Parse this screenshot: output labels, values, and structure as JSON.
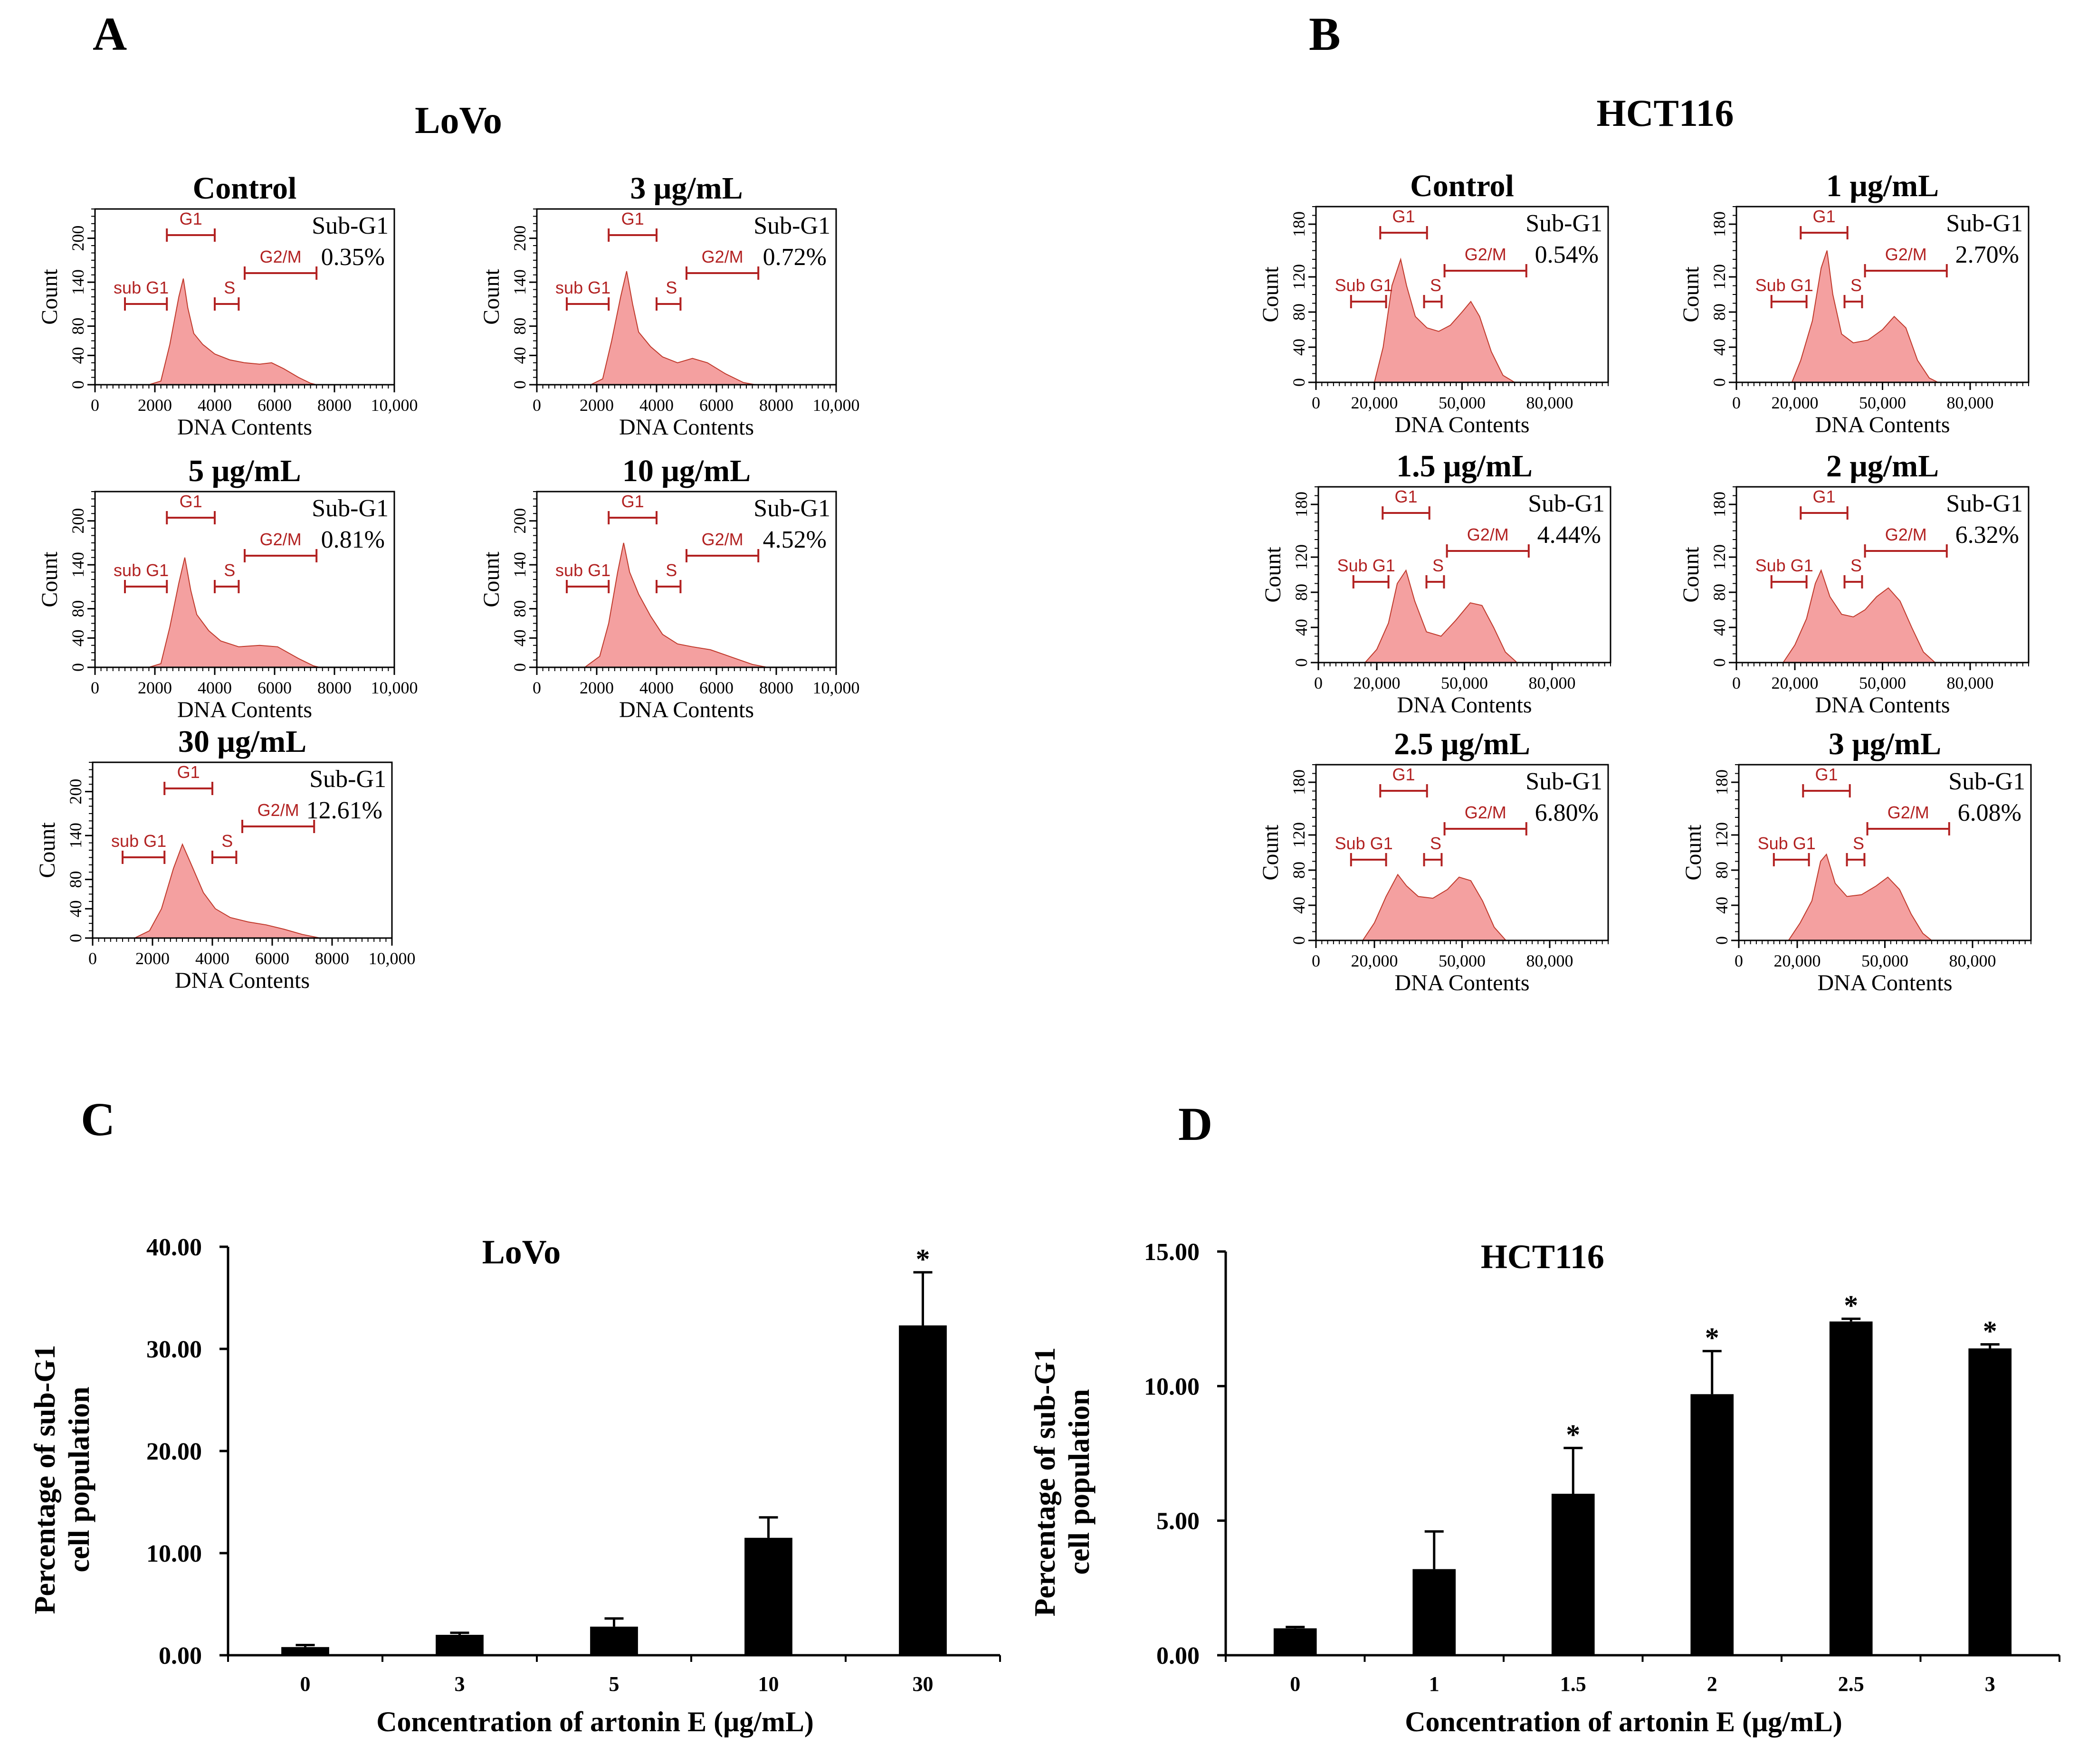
{
  "panels": {
    "A": {
      "letter": "A",
      "cell_line": "LoVo"
    },
    "B": {
      "letter": "B",
      "cell_line": "HCT116"
    },
    "C": {
      "letter": "C"
    },
    "D": {
      "letter": "D"
    }
  },
  "histogram_labels": {
    "count": "Count",
    "dna": "DNA  Contents",
    "subg1_title": "Sub-G1",
    "gate_g1": "G1",
    "gate_s": "S",
    "gate_g2m": "G2/M",
    "gate_sub_lovo": "sub G1",
    "gate_sub_hct": "Sub G1"
  },
  "colors": {
    "histogram_fill": "#f4a0a0",
    "histogram_edge": "#c0392b",
    "gate": "#b22222",
    "bar": "#000000"
  },
  "chart_data": [
    {
      "id": "lovo_histograms",
      "type": "area",
      "cell_line": "LoVo",
      "xlabel": "DNA  Contents",
      "ylabel": "Count",
      "x_range": [
        0,
        10000
      ],
      "y_range": [
        0,
        240
      ],
      "x_ticks": [
        "0",
        "2000",
        "4000",
        "6000",
        "8000",
        "10,000"
      ],
      "y_ticks": [
        "0",
        "40",
        "80",
        "140",
        "200"
      ],
      "y_tick_values": [
        0,
        40,
        80,
        140,
        200
      ],
      "gates": {
        "sub": [
          1000,
          2400
        ],
        "g1": [
          2400,
          4000
        ],
        "s": [
          4000,
          4800
        ],
        "g2m": [
          5000,
          7400
        ]
      },
      "subpanels": [
        {
          "title": "Control",
          "subg1": "0.35%",
          "curve": [
            [
              0,
              0
            ],
            [
              1800,
              0
            ],
            [
              2200,
              5
            ],
            [
              2500,
              55
            ],
            [
              2800,
              120
            ],
            [
              2950,
              145
            ],
            [
              3100,
              105
            ],
            [
              3300,
              70
            ],
            [
              3600,
              55
            ],
            [
              4000,
              42
            ],
            [
              4500,
              34
            ],
            [
              5000,
              30
            ],
            [
              5500,
              28
            ],
            [
              5900,
              30
            ],
            [
              6300,
              22
            ],
            [
              6800,
              10
            ],
            [
              7200,
              2
            ],
            [
              7400,
              0
            ]
          ]
        },
        {
          "title": "3 μg/mL",
          "subg1": "0.72%",
          "curve": [
            [
              0,
              0
            ],
            [
              1800,
              0
            ],
            [
              2200,
              8
            ],
            [
              2500,
              60
            ],
            [
              2800,
              120
            ],
            [
              3000,
              155
            ],
            [
              3200,
              110
            ],
            [
              3400,
              72
            ],
            [
              3800,
              52
            ],
            [
              4200,
              38
            ],
            [
              4700,
              30
            ],
            [
              5200,
              36
            ],
            [
              5700,
              30
            ],
            [
              6300,
              15
            ],
            [
              6900,
              3
            ],
            [
              7300,
              0
            ]
          ]
        },
        {
          "title": "5 μg/mL",
          "subg1": "0.81%",
          "curve": [
            [
              0,
              0
            ],
            [
              1800,
              0
            ],
            [
              2200,
              5
            ],
            [
              2500,
              55
            ],
            [
              2800,
              115
            ],
            [
              3000,
              150
            ],
            [
              3200,
              105
            ],
            [
              3400,
              72
            ],
            [
              3800,
              50
            ],
            [
              4200,
              36
            ],
            [
              4800,
              28
            ],
            [
              5500,
              30
            ],
            [
              6100,
              28
            ],
            [
              6800,
              12
            ],
            [
              7300,
              2
            ],
            [
              7500,
              0
            ]
          ]
        },
        {
          "title": "10 μg/mL",
          "subg1": "4.52%",
          "curve": [
            [
              0,
              0
            ],
            [
              1600,
              0
            ],
            [
              2100,
              15
            ],
            [
              2400,
              60
            ],
            [
              2700,
              130
            ],
            [
              2900,
              170
            ],
            [
              3100,
              130
            ],
            [
              3400,
              100
            ],
            [
              3800,
              70
            ],
            [
              4200,
              45
            ],
            [
              4700,
              32
            ],
            [
              5200,
              28
            ],
            [
              5800,
              24
            ],
            [
              6500,
              14
            ],
            [
              7200,
              4
            ],
            [
              7700,
              0
            ]
          ]
        },
        {
          "title": "30 μg/mL",
          "subg1": "12.61%",
          "curve": [
            [
              0,
              0
            ],
            [
              1400,
              0
            ],
            [
              1900,
              10
            ],
            [
              2300,
              40
            ],
            [
              2700,
              95
            ],
            [
              3000,
              128
            ],
            [
              3300,
              100
            ],
            [
              3700,
              62
            ],
            [
              4100,
              40
            ],
            [
              4600,
              28
            ],
            [
              5200,
              22
            ],
            [
              5800,
              18
            ],
            [
              6400,
              12
            ],
            [
              7000,
              5
            ],
            [
              7600,
              0
            ]
          ]
        }
      ]
    },
    {
      "id": "hct116_histograms",
      "type": "area",
      "cell_line": "HCT116",
      "xlabel": "DNA  Contents",
      "ylabel": "Count",
      "x_range": [
        0,
        100000
      ],
      "y_range": [
        0,
        200
      ],
      "x_ticks": [
        "0",
        "20,000",
        "50,000",
        "80,000"
      ],
      "x_tick_values": [
        0,
        20000,
        50000,
        80000
      ],
      "y_ticks": [
        "0",
        "40",
        "80",
        "120",
        "180"
      ],
      "y_tick_values": [
        0,
        40,
        80,
        120,
        180
      ],
      "gates": {
        "sub": [
          12000,
          24000
        ],
        "g1": [
          22000,
          38000
        ],
        "s": [
          37000,
          43000
        ],
        "g2m": [
          44000,
          72000
        ]
      },
      "subpanels": [
        {
          "title": "Control",
          "subg1": "0.54%",
          "curve": [
            [
              0,
              0
            ],
            [
              20000,
              0
            ],
            [
              23000,
              40
            ],
            [
              26000,
              110
            ],
            [
              29000,
              140
            ],
            [
              31000,
              110
            ],
            [
              34000,
              75
            ],
            [
              38000,
              62
            ],
            [
              42000,
              58
            ],
            [
              46000,
              65
            ],
            [
              50000,
              80
            ],
            [
              53000,
              92
            ],
            [
              56000,
              75
            ],
            [
              60000,
              35
            ],
            [
              64000,
              8
            ],
            [
              68000,
              0
            ]
          ]
        },
        {
          "title": "1 μg/mL",
          "subg1": "2.70%",
          "curve": [
            [
              0,
              0
            ],
            [
              19000,
              0
            ],
            [
              22000,
              25
            ],
            [
              26000,
              70
            ],
            [
              29000,
              130
            ],
            [
              31000,
              150
            ],
            [
              33000,
              100
            ],
            [
              36000,
              55
            ],
            [
              40000,
              45
            ],
            [
              45000,
              48
            ],
            [
              50000,
              60
            ],
            [
              54000,
              75
            ],
            [
              58000,
              62
            ],
            [
              62000,
              25
            ],
            [
              66000,
              5
            ],
            [
              69000,
              0
            ]
          ]
        },
        {
          "title": "1.5 μg/mL",
          "subg1": "4.44%",
          "curve": [
            [
              0,
              0
            ],
            [
              16000,
              0
            ],
            [
              20000,
              15
            ],
            [
              24000,
              45
            ],
            [
              27000,
              90
            ],
            [
              30000,
              105
            ],
            [
              33000,
              70
            ],
            [
              37000,
              35
            ],
            [
              42000,
              30
            ],
            [
              47000,
              48
            ],
            [
              52000,
              68
            ],
            [
              56000,
              65
            ],
            [
              60000,
              40
            ],
            [
              64000,
              12
            ],
            [
              68000,
              0
            ]
          ]
        },
        {
          "title": "2 μg/mL",
          "subg1": "6.32%",
          "curve": [
            [
              0,
              0
            ],
            [
              16000,
              0
            ],
            [
              20000,
              20
            ],
            [
              24000,
              50
            ],
            [
              27000,
              90
            ],
            [
              29000,
              105
            ],
            [
              32000,
              75
            ],
            [
              36000,
              55
            ],
            [
              40000,
              52
            ],
            [
              44000,
              60
            ],
            [
              48000,
              75
            ],
            [
              52000,
              85
            ],
            [
              56000,
              70
            ],
            [
              60000,
              40
            ],
            [
              64000,
              12
            ],
            [
              68000,
              0
            ]
          ]
        },
        {
          "title": "2.5 μg/mL",
          "subg1": "6.80%",
          "curve": [
            [
              0,
              0
            ],
            [
              16000,
              0
            ],
            [
              20000,
              20
            ],
            [
              24000,
              50
            ],
            [
              28000,
              75
            ],
            [
              31000,
              62
            ],
            [
              35000,
              50
            ],
            [
              40000,
              48
            ],
            [
              45000,
              58
            ],
            [
              49000,
              72
            ],
            [
              53000,
              68
            ],
            [
              57000,
              45
            ],
            [
              61000,
              15
            ],
            [
              65000,
              0
            ]
          ]
        },
        {
          "title": "3 μg/mL",
          "subg1": "6.08%",
          "curve": [
            [
              0,
              0
            ],
            [
              17000,
              0
            ],
            [
              21000,
              20
            ],
            [
              25000,
              45
            ],
            [
              28000,
              90
            ],
            [
              30000,
              98
            ],
            [
              33000,
              65
            ],
            [
              37000,
              50
            ],
            [
              42000,
              52
            ],
            [
              47000,
              62
            ],
            [
              51000,
              72
            ],
            [
              55000,
              58
            ],
            [
              59000,
              30
            ],
            [
              63000,
              8
            ],
            [
              66000,
              0
            ]
          ]
        }
      ]
    },
    {
      "id": "lovo_bar",
      "type": "bar",
      "title": "LoVo",
      "xlabel": "Concentration of artonin E (μg/mL)",
      "ylabel": "Percentage of sub-G1 cell population",
      "ylabel_lines": [
        "Percentage of sub-G1",
        "cell population"
      ],
      "categories": [
        "0",
        "3",
        "5",
        "10",
        "30"
      ],
      "values": [
        0.8,
        2.0,
        2.8,
        11.5,
        32.3
      ],
      "errors": [
        0.2,
        0.2,
        0.8,
        2.0,
        5.2
      ],
      "significant": [
        "",
        "",
        "",
        "",
        "*"
      ],
      "ylim": [
        0,
        40
      ],
      "y_ticks": [
        0,
        10,
        20,
        30,
        40
      ],
      "y_tick_labels": [
        "0.00",
        "10.00",
        "20.00",
        "30.00",
        "40.00"
      ]
    },
    {
      "id": "hct116_bar",
      "type": "bar",
      "title": "HCT116",
      "xlabel": "Concentration of artonin E (μg/mL)",
      "ylabel": "Percentage of sub-G1 cell population",
      "ylabel_lines": [
        "Percentage of sub-G1",
        "cell population"
      ],
      "categories": [
        "0",
        "1",
        "1.5",
        "2",
        "2.5",
        "3"
      ],
      "values": [
        1.0,
        3.2,
        6.0,
        9.7,
        12.4,
        11.4
      ],
      "errors": [
        0.05,
        1.4,
        1.7,
        1.6,
        0.1,
        0.15
      ],
      "significant": [
        "",
        "",
        "*",
        "*",
        "*",
        "*"
      ],
      "ylim": [
        0,
        15
      ],
      "y_ticks": [
        0,
        5,
        10,
        15
      ],
      "y_tick_labels": [
        "0.00",
        "5.00",
        "10.00",
        "15.00"
      ]
    }
  ]
}
